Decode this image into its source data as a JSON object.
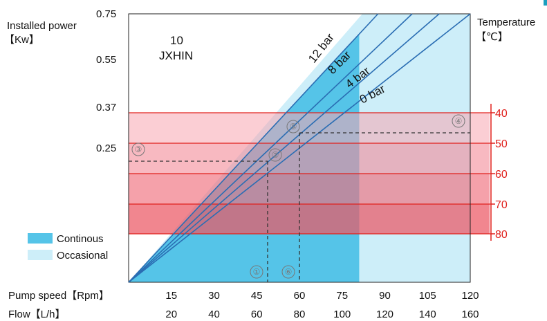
{
  "chart_data": {
    "type": "line",
    "title_number": "10",
    "title_model": "JXHIN",
    "y_axis_label_line1": "Installed power",
    "y_axis_label_line2": "【Kw】",
    "y_ticks": [
      "0.75",
      "0.55",
      "0.37",
      "0.25"
    ],
    "right_axis_label_line1": "Temperature",
    "right_axis_label_line2": "【℃】",
    "temperature_ticks": [
      "40",
      "50",
      "60",
      "70",
      "80"
    ],
    "pump_speed_label": "Pump speed【Rpm】",
    "pump_speed_ticks": [
      "15",
      "30",
      "45",
      "60",
      "75",
      "90",
      "105",
      "120"
    ],
    "flow_label": "Flow【L/h】",
    "flow_ticks": [
      "20",
      "40",
      "60",
      "80",
      "100",
      "120",
      "140",
      "160"
    ],
    "series": [
      {
        "name": "12 bar",
        "x": [
          0,
          87.6
        ]
      },
      {
        "name": "8 bar",
        "x": [
          0,
          99.6
        ]
      },
      {
        "name": "4 bar",
        "x": [
          0,
          109.1
        ]
      },
      {
        "name": "0 bar",
        "x": [
          0,
          120
        ]
      }
    ],
    "continuous_max_rpm": 81,
    "occasional_max_rpm": 120,
    "legend": [
      {
        "label": "Continous",
        "color": "#55c4e8"
      },
      {
        "label": "Occasional",
        "color": "#cdeef9"
      }
    ],
    "markers": [
      "①",
      "②",
      "③",
      "④",
      "⑤",
      "⑥"
    ],
    "colors": {
      "continuous": "#55c4e8",
      "occasional": "#cdeef9",
      "temperature_lines": "#e0201c",
      "series_lines": "#2a6db3"
    }
  }
}
